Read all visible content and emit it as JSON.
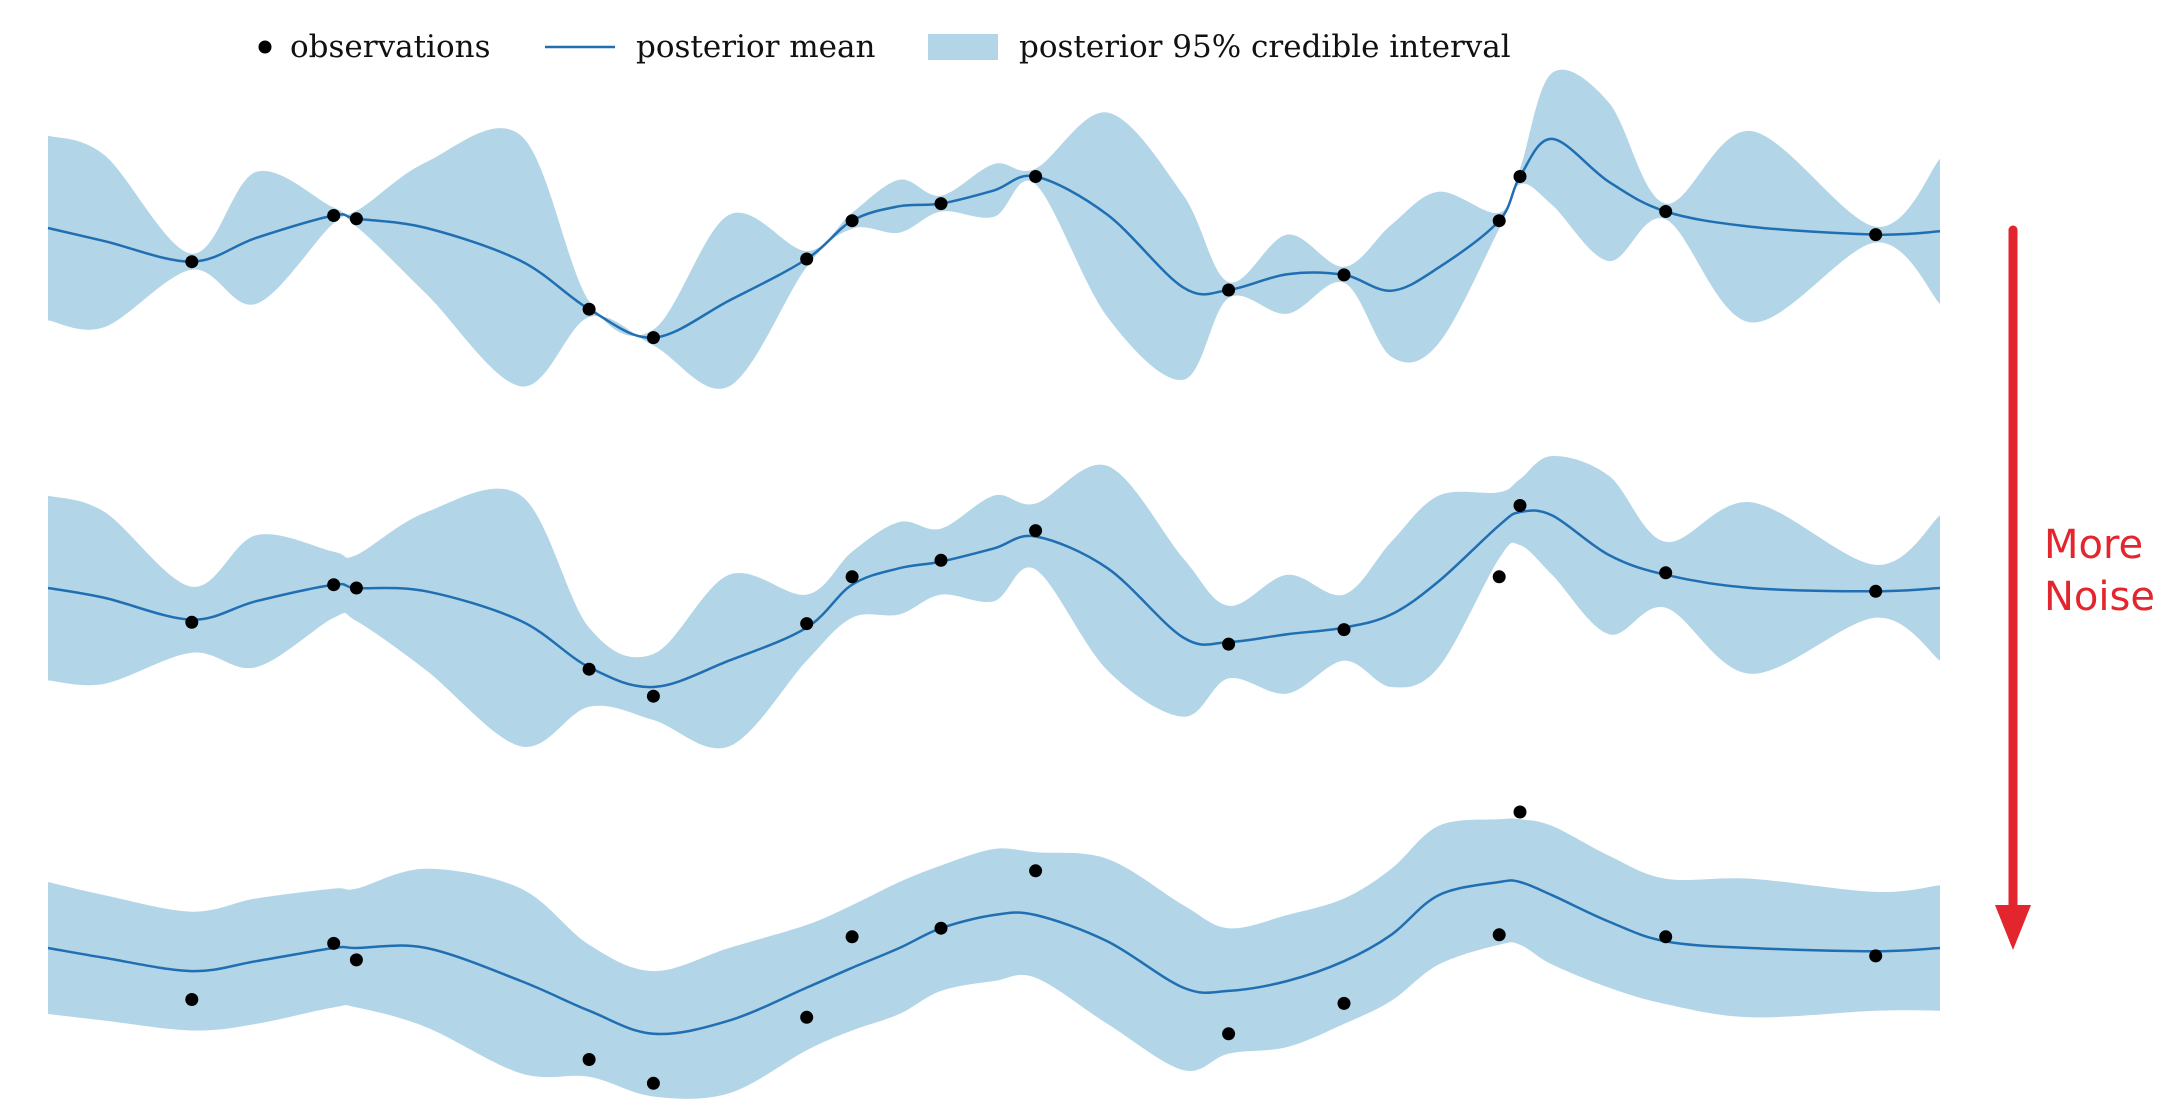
{
  "colors": {
    "band": "#b3d5e8",
    "mean": "#1f6fb2",
    "observation": "#000000",
    "arrow": "#e3262d"
  },
  "legend": {
    "observations_label": "observations",
    "mean_label": "posterior mean",
    "interval_label": "posterior 95% credible interval"
  },
  "annotation": {
    "line1": "More",
    "line2": "Noise"
  },
  "chart_data": [
    {
      "type": "area",
      "xlim": [
        0,
        1
      ],
      "observations": {
        "x": [
          0.076,
          0.151,
          0.163,
          0.286,
          0.32,
          0.401,
          0.425,
          0.472,
          0.522,
          0.624,
          0.685,
          0.767,
          0.778,
          0.855,
          0.966
        ],
        "y": [
          -0.51,
          0.19,
          0.14,
          -1.23,
          -1.66,
          -0.47,
          0.11,
          0.37,
          0.78,
          -0.94,
          -0.71,
          0.11,
          0.78,
          0.25,
          -0.1
        ]
      },
      "mean": {
        "x": [
          0,
          0.03,
          0.076,
          0.11,
          0.151,
          0.163,
          0.2,
          0.25,
          0.286,
          0.32,
          0.36,
          0.401,
          0.425,
          0.45,
          0.472,
          0.5,
          0.522,
          0.56,
          0.6,
          0.624,
          0.655,
          0.685,
          0.71,
          0.735,
          0.767,
          0.778,
          0.795,
          0.825,
          0.855,
          0.9,
          0.966,
          1
        ],
        "y": [
          0.0,
          -0.2,
          -0.51,
          -0.15,
          0.19,
          0.14,
          0.0,
          -0.5,
          -1.23,
          -1.66,
          -1.1,
          -0.47,
          0.11,
          0.33,
          0.37,
          0.57,
          0.78,
          0.2,
          -0.9,
          -0.94,
          -0.7,
          -0.71,
          -0.95,
          -0.6,
          0.11,
          0.78,
          1.35,
          0.7,
          0.25,
          0.02,
          -0.1,
          -0.05
        ]
      },
      "band_halfwidth": {
        "x": [
          0,
          0.03,
          0.076,
          0.11,
          0.151,
          0.163,
          0.2,
          0.25,
          0.286,
          0.32,
          0.36,
          0.401,
          0.425,
          0.45,
          0.472,
          0.5,
          0.522,
          0.56,
          0.6,
          0.624,
          0.655,
          0.685,
          0.71,
          0.735,
          0.767,
          0.778,
          0.795,
          0.825,
          0.855,
          0.9,
          0.966,
          1
        ],
        "y": [
          1.4,
          1.3,
          0.12,
          1.0,
          0.12,
          0.12,
          1.0,
          1.9,
          0.12,
          0.12,
          1.3,
          0.12,
          0.12,
          0.4,
          0.12,
          0.4,
          0.12,
          1.55,
          1.4,
          0.12,
          0.6,
          0.12,
          1.0,
          1.15,
          0.12,
          0.12,
          1.0,
          1.2,
          0.12,
          1.45,
          0.12,
          1.1
        ]
      }
    },
    {
      "type": "area",
      "xlim": [
        0,
        1
      ],
      "observations": {
        "x": [
          0.076,
          0.151,
          0.163,
          0.286,
          0.32,
          0.401,
          0.425,
          0.472,
          0.522,
          0.624,
          0.685,
          0.767,
          0.778,
          0.855,
          0.966
        ],
        "y": [
          -0.52,
          0.05,
          0.0,
          -1.23,
          -1.64,
          -0.54,
          0.17,
          0.42,
          0.87,
          -0.85,
          -0.63,
          0.17,
          1.25,
          0.23,
          -0.05
        ]
      },
      "mean": {
        "x": [
          0,
          0.03,
          0.076,
          0.11,
          0.151,
          0.163,
          0.2,
          0.25,
          0.286,
          0.32,
          0.36,
          0.401,
          0.425,
          0.45,
          0.472,
          0.5,
          0.522,
          0.56,
          0.6,
          0.624,
          0.655,
          0.685,
          0.71,
          0.735,
          0.767,
          0.778,
          0.795,
          0.825,
          0.855,
          0.9,
          0.966,
          1
        ],
        "y": [
          0.0,
          -0.15,
          -0.48,
          -0.2,
          0.05,
          0.0,
          -0.05,
          -0.5,
          -1.2,
          -1.5,
          -1.1,
          -0.6,
          0.05,
          0.3,
          0.4,
          0.6,
          0.78,
          0.3,
          -0.75,
          -0.82,
          -0.7,
          -0.6,
          -0.4,
          0.1,
          0.95,
          1.15,
          1.1,
          0.5,
          0.2,
          0.0,
          -0.05,
          0.0
        ]
      },
      "band_halfwidth": {
        "x": [
          0,
          0.03,
          0.076,
          0.11,
          0.151,
          0.163,
          0.2,
          0.25,
          0.286,
          0.32,
          0.36,
          0.401,
          0.425,
          0.45,
          0.472,
          0.5,
          0.522,
          0.56,
          0.6,
          0.624,
          0.655,
          0.685,
          0.71,
          0.735,
          0.767,
          0.778,
          0.795,
          0.825,
          0.855,
          0.9,
          0.966,
          1
        ],
        "y": [
          1.4,
          1.3,
          0.5,
          1.0,
          0.5,
          0.5,
          1.2,
          1.9,
          0.6,
          0.5,
          1.3,
          0.5,
          0.5,
          0.7,
          0.5,
          0.8,
          0.5,
          1.55,
          1.2,
          0.55,
          0.9,
          0.5,
          1.1,
          1.3,
          0.5,
          0.5,
          0.9,
          1.2,
          0.5,
          1.3,
          0.4,
          1.1
        ]
      }
    },
    {
      "type": "area",
      "xlim": [
        0,
        1
      ],
      "observations": {
        "x": [
          0.076,
          0.151,
          0.163,
          0.286,
          0.32,
          0.401,
          0.425,
          0.472,
          0.522,
          0.624,
          0.685,
          0.767,
          0.778,
          0.855,
          0.966
        ],
        "y": [
          -0.78,
          0.07,
          -0.18,
          -1.69,
          -2.05,
          -1.05,
          0.17,
          0.3,
          1.17,
          -1.3,
          -0.84,
          0.2,
          2.06,
          0.17,
          -0.12
        ]
      },
      "mean": {
        "x": [
          0,
          0.03,
          0.076,
          0.11,
          0.151,
          0.163,
          0.2,
          0.25,
          0.286,
          0.32,
          0.36,
          0.401,
          0.425,
          0.45,
          0.472,
          0.5,
          0.522,
          0.56,
          0.6,
          0.624,
          0.655,
          0.685,
          0.71,
          0.735,
          0.767,
          0.778,
          0.795,
          0.825,
          0.855,
          0.9,
          0.966,
          1
        ],
        "y": [
          0.0,
          -0.15,
          -0.35,
          -0.2,
          0.0,
          0.0,
          0.0,
          -0.5,
          -0.95,
          -1.3,
          -1.1,
          -0.6,
          -0.3,
          0.0,
          0.3,
          0.5,
          0.5,
          0.1,
          -0.6,
          -0.65,
          -0.5,
          -0.2,
          0.2,
          0.8,
          1.0,
          1.0,
          0.8,
          0.4,
          0.1,
          0.0,
          -0.05,
          0.0
        ]
      },
      "band_halfwidth": {
        "x": [
          0,
          0.03,
          0.076,
          0.11,
          0.151,
          0.163,
          0.2,
          0.25,
          0.286,
          0.32,
          0.36,
          0.401,
          0.425,
          0.45,
          0.472,
          0.5,
          0.522,
          0.56,
          0.6,
          0.624,
          0.655,
          0.685,
          0.71,
          0.735,
          0.767,
          0.778,
          0.795,
          0.825,
          0.855,
          0.9,
          0.966,
          1
        ],
        "y": [
          1.0,
          0.95,
          0.9,
          0.95,
          0.9,
          0.9,
          1.2,
          1.4,
          1.0,
          0.95,
          1.1,
          0.95,
          0.95,
          1.0,
          0.95,
          1.0,
          0.95,
          1.25,
          1.25,
          0.95,
          1.0,
          0.95,
          1.0,
          1.05,
          0.95,
          0.95,
          1.05,
          1.0,
          0.95,
          1.05,
          0.9,
          0.95
        ]
      }
    }
  ]
}
